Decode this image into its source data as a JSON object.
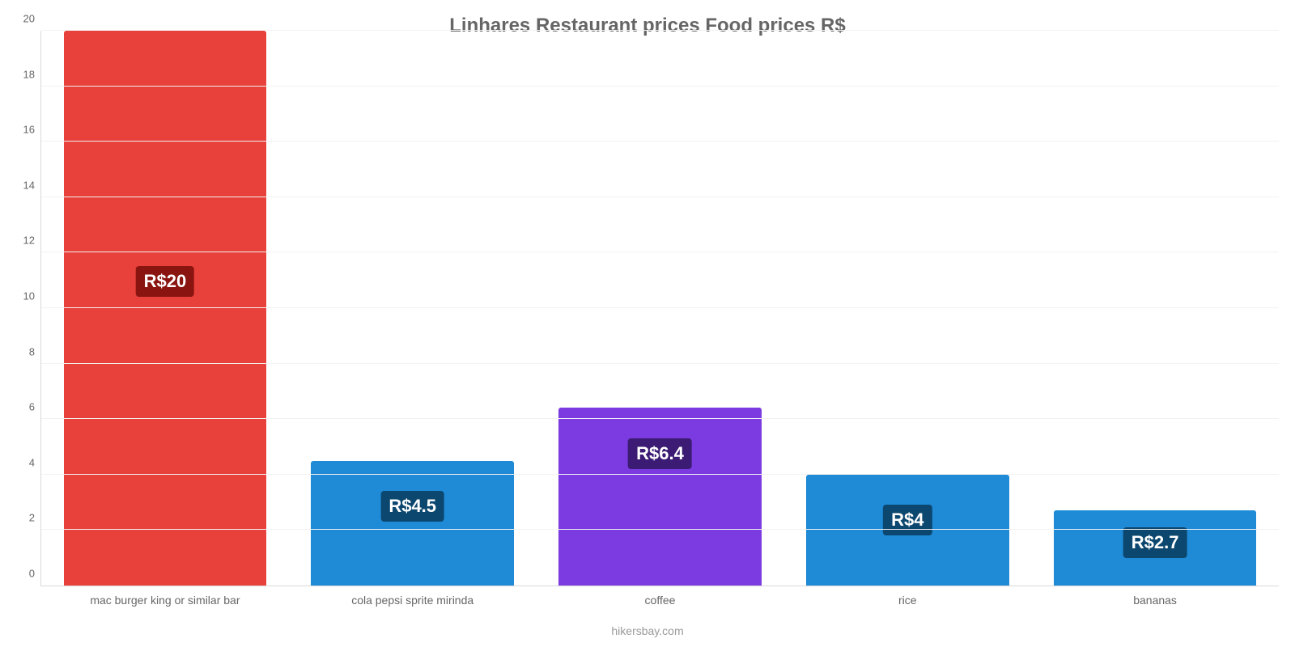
{
  "chart": {
    "type": "bar",
    "title": "Linhares Restaurant prices Food prices R$",
    "title_fontsize": 24,
    "title_color": "#666666",
    "background_color": "#ffffff",
    "grid_color": "#f2f2f2",
    "axis_color": "#d9d9d9",
    "tick_color": "#666666",
    "tick_fontsize": 13,
    "xlabel_fontsize": 14,
    "ylim": [
      0,
      20
    ],
    "ytick_step": 2,
    "bar_width": 0.82,
    "value_label_fontsize": 22,
    "value_label_text_color": "#ffffff",
    "credit": "hikersbay.com",
    "credit_color": "#999999",
    "credit_fontsize": 14,
    "categories": [
      "mac burger king or similar bar",
      "cola pepsi sprite mirinda",
      "coffee",
      "rice",
      "bananas"
    ],
    "values": [
      20,
      4.5,
      6.4,
      4,
      2.7
    ],
    "value_labels": [
      "R$20",
      "R$4.5",
      "R$6.4",
      "R$4",
      "R$2.7"
    ],
    "bar_colors": [
      "#e8403a",
      "#1f8ad6",
      "#7c3be0",
      "#1f8ad6",
      "#1f8ad6"
    ],
    "badge_colors": [
      "#8a1410",
      "#0b476f",
      "#3b1b73",
      "#0b476f",
      "#0b476f"
    ]
  }
}
